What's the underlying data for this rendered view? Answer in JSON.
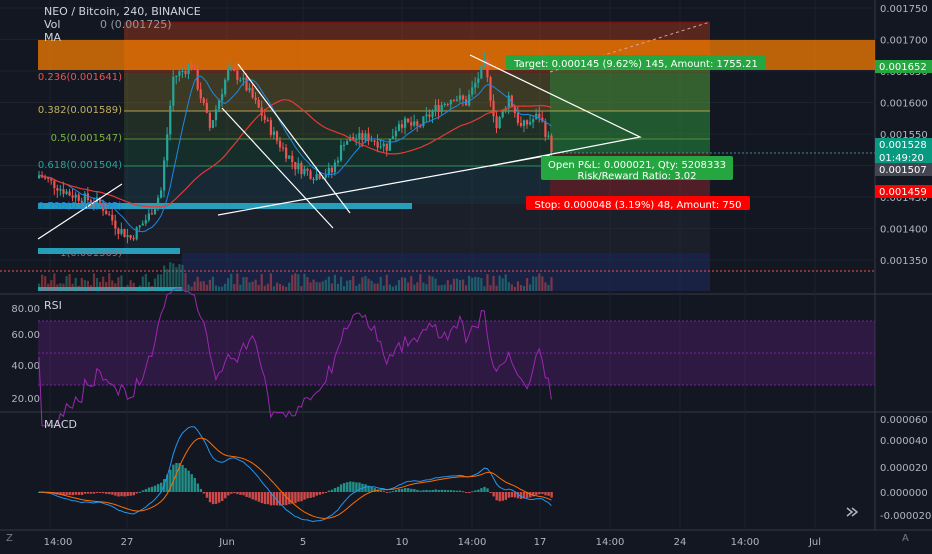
{
  "header": {
    "title": "NEO / Bitcoin, 240, BINANCE",
    "vol_label": "Vol",
    "vol_value": "0 (0.001725)",
    "ma_label": "MA"
  },
  "panes": {
    "rsi_label": "RSI",
    "macd_label": "MACD"
  },
  "price_axis": {
    "ticks": [
      "0.001750",
      "0.001700",
      "0.001650",
      "0.001600",
      "0.001550",
      "0.001500",
      "0.001450",
      "0.001400",
      "0.001350"
    ],
    "badges": [
      {
        "text": "0.001652",
        "color": "#26a641"
      },
      {
        "text": "0.001528",
        "color": "#089981"
      },
      {
        "text": "01:49:20",
        "color": "#089981"
      },
      {
        "text": "0.001507",
        "color": "#434651"
      },
      {
        "text": "0.001459",
        "color": "#ff0000"
      }
    ]
  },
  "rsi_axis": {
    "ticks": [
      "80.00",
      "60.00",
      "40.00",
      "20.00"
    ]
  },
  "macd_axis": {
    "ticks": [
      "0.000060",
      "0.000040",
      "0.000020",
      "0.000000",
      "-0.000020"
    ]
  },
  "time_axis": {
    "ticks": [
      "14:00",
      "27",
      "Jun",
      "5",
      "10",
      "14:00",
      "17",
      "14:00",
      "24",
      "14:00",
      "Jul"
    ],
    "corner_left": "Z",
    "corner_right": "A"
  },
  "fib_labels": [
    "0.236(0.001641)",
    "0.382(0.001589)",
    "0.5(0.001547)",
    "0.618(0.001504)",
    "1(0.001369)"
  ],
  "fib_partial": "0.786(0.001445)",
  "position": {
    "target": "Target: 0.000145 (9.62%) 145, Amount: 1755.21",
    "pnl": "Open P&L: 0.000021, Qty: 5208333",
    "rr": "Risk/Reward Ratio: 3.02",
    "stop": "Stop: 0.000048 (3.19%) 48, Amount: 750"
  },
  "colors": {
    "background": "#131722",
    "up": "#26a69a",
    "down": "#ef5350",
    "target_bg": "#26a641",
    "stop_bg": "#ff0000",
    "rsi_line": "#9c27b0",
    "macd_line": "#2196f3",
    "signal_line": "#ff6d00"
  },
  "icons": {
    "scroll_end": "double-arrow-icon"
  }
}
